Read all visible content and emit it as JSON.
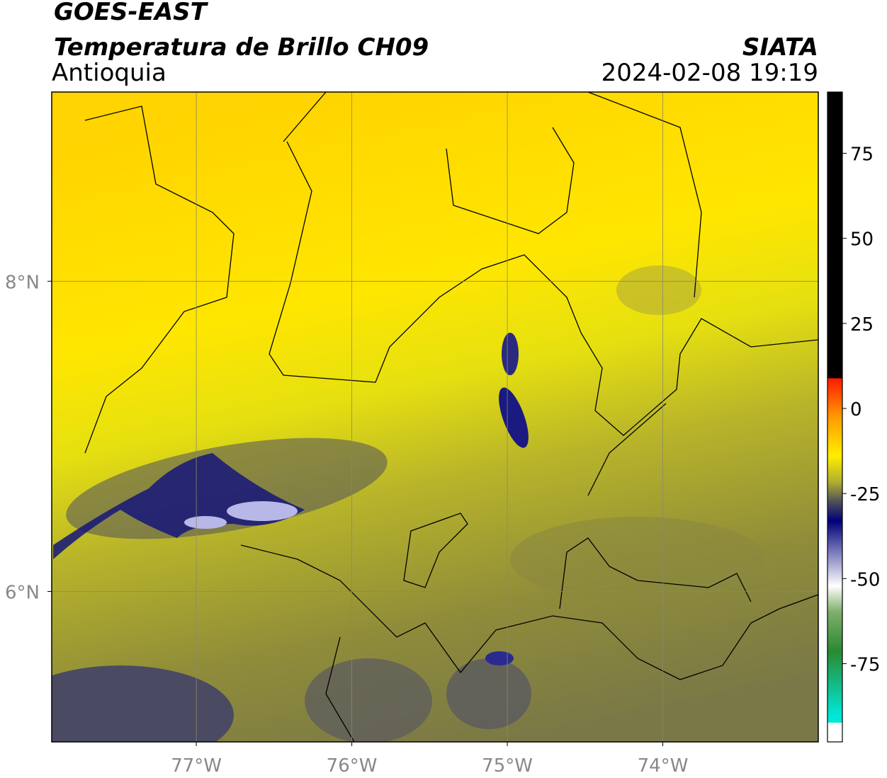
{
  "header": {
    "satellite": "GOES-EAST",
    "product": "Temperatura de Brillo CH09",
    "region": "Antioquia",
    "source": "SIATA",
    "datetime": "2024-02-08 19:19"
  },
  "map": {
    "xlim": [
      -77.93,
      -73.0
    ],
    "ylim": [
      5.03,
      9.22
    ],
    "xticks": [
      {
        "value": -77,
        "label": "77°W"
      },
      {
        "value": -76,
        "label": "76°W"
      },
      {
        "value": -75,
        "label": "75°W"
      },
      {
        "value": -74,
        "label": "74°W"
      }
    ],
    "yticks": [
      {
        "value": 6,
        "label": "6°N"
      },
      {
        "value": 8,
        "label": "8°N"
      }
    ],
    "grid": true
  },
  "colorbar": {
    "lim": [
      -98,
      93
    ],
    "ticks": [
      75,
      50,
      25,
      0,
      -25,
      -50,
      -75
    ]
  }
}
